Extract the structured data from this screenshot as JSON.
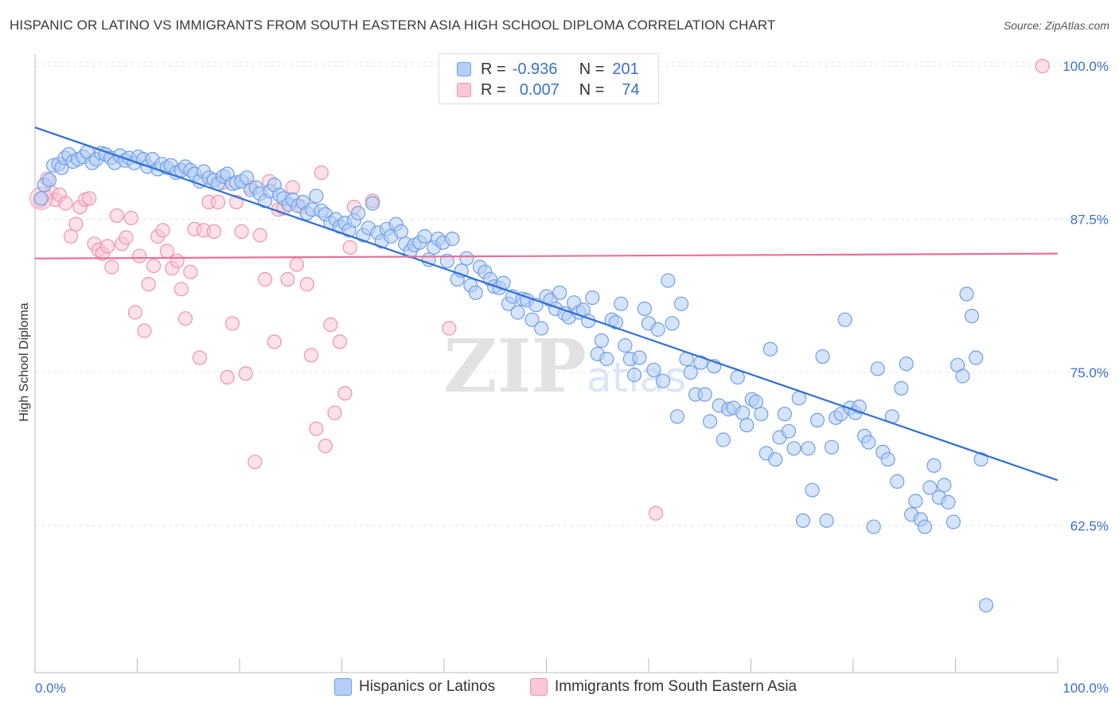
{
  "title": "HISPANIC OR LATINO VS IMMIGRANTS FROM SOUTH EASTERN ASIA HIGH SCHOOL DIPLOMA CORRELATION CHART",
  "source": "Source: ZipAtlas.com",
  "watermark": "ZIPatlas",
  "stats": {
    "blue": {
      "r_label": "R =",
      "r_value": "-0.936",
      "n_label": "N =",
      "n_value": "201"
    },
    "pink": {
      "r_label": "R =",
      "r_value": "0.007",
      "n_label": "N =",
      "n_value": "74"
    }
  },
  "legend": {
    "blue_label": "Hispanics or Latinos",
    "pink_label": "Immigrants from South Eastern Asia"
  },
  "colors": {
    "blue": "#6f9ee6",
    "blue_fill": "#b5cef5",
    "blue_line": "#2f6fd4",
    "pink": "#ee93ae",
    "pink_fill": "#f8c8d6",
    "pink_line": "#e8709a",
    "tick_label": "#3a6fcf"
  },
  "chart_data": {
    "type": "scatter",
    "title": "HISPANIC OR LATINO VS IMMIGRANTS FROM SOUTH EASTERN ASIA HIGH SCHOOL DIPLOMA CORRELATION CHART",
    "xlabel": "",
    "ylabel": "High School Diploma",
    "xlim": [
      0,
      100
    ],
    "ylim": [
      50.5,
      101.5
    ],
    "x_tick_labels": [
      "0.0%",
      "100.0%"
    ],
    "y_ticks": [
      62.5,
      75.0,
      87.5,
      100.0
    ],
    "y_tick_labels": [
      "62.5%",
      "75.0%",
      "87.5%",
      "100.0%"
    ],
    "grid": true,
    "legend_position": "bottom",
    "series": [
      {
        "name": "Hispanics or Latinos",
        "trend": [
          [
            0,
            95.0
          ],
          [
            100,
            66.2
          ]
        ],
        "points": [
          [
            0.6,
            89.2
          ],
          [
            0.9,
            90.3
          ],
          [
            1.4,
            90.7
          ],
          [
            1.8,
            91.9
          ],
          [
            2.3,
            92.0
          ],
          [
            2.6,
            91.7
          ],
          [
            2.9,
            92.5
          ],
          [
            3.3,
            92.8
          ],
          [
            3.7,
            92.2
          ],
          [
            4.2,
            92.4
          ],
          [
            4.7,
            92.6
          ],
          [
            5.1,
            93.0
          ],
          [
            5.6,
            92.1
          ],
          [
            6.0,
            92.4
          ],
          [
            6.5,
            92.9
          ],
          [
            6.9,
            92.8
          ],
          [
            7.4,
            92.5
          ],
          [
            7.8,
            92.1
          ],
          [
            8.3,
            92.7
          ],
          [
            8.8,
            92.3
          ],
          [
            9.2,
            92.5
          ],
          [
            9.7,
            92.1
          ],
          [
            10.1,
            92.6
          ],
          [
            10.6,
            92.4
          ],
          [
            11.0,
            91.8
          ],
          [
            11.5,
            92.4
          ],
          [
            12.0,
            91.6
          ],
          [
            12.4,
            92.0
          ],
          [
            12.9,
            91.7
          ],
          [
            13.3,
            91.9
          ],
          [
            13.8,
            91.3
          ],
          [
            14.3,
            91.5
          ],
          [
            14.7,
            91.8
          ],
          [
            15.2,
            91.5
          ],
          [
            15.6,
            91.2
          ],
          [
            16.1,
            90.6
          ],
          [
            16.5,
            91.4
          ],
          [
            17.0,
            90.9
          ],
          [
            17.5,
            90.7
          ],
          [
            17.9,
            90.4
          ],
          [
            18.4,
            91.0
          ],
          [
            18.8,
            91.2
          ],
          [
            19.3,
            90.4
          ],
          [
            19.7,
            90.5
          ],
          [
            20.2,
            90.6
          ],
          [
            20.7,
            90.9
          ],
          [
            21.1,
            89.9
          ],
          [
            21.6,
            90.1
          ],
          [
            22.0,
            89.6
          ],
          [
            22.5,
            89.0
          ],
          [
            23.0,
            89.8
          ],
          [
            23.4,
            90.3
          ],
          [
            23.9,
            89.5
          ],
          [
            24.3,
            89.2
          ],
          [
            24.8,
            88.7
          ],
          [
            25.2,
            89.1
          ],
          [
            25.7,
            88.6
          ],
          [
            26.2,
            88.9
          ],
          [
            26.6,
            88.0
          ],
          [
            27.1,
            88.3
          ],
          [
            27.5,
            89.4
          ],
          [
            28.0,
            88.2
          ],
          [
            28.4,
            87.9
          ],
          [
            28.9,
            87.2
          ],
          [
            29.4,
            87.5
          ],
          [
            29.8,
            86.9
          ],
          [
            30.3,
            87.2
          ],
          [
            30.7,
            86.6
          ],
          [
            31.2,
            87.4
          ],
          [
            31.6,
            88.0
          ],
          [
            32.1,
            86.2
          ],
          [
            32.6,
            86.8
          ],
          [
            33.0,
            88.8
          ],
          [
            33.5,
            86.4
          ],
          [
            33.9,
            85.7
          ],
          [
            34.4,
            86.7
          ],
          [
            34.8,
            86.1
          ],
          [
            35.3,
            87.1
          ],
          [
            35.8,
            86.5
          ],
          [
            36.2,
            85.5
          ],
          [
            36.7,
            84.9
          ],
          [
            37.1,
            85.4
          ],
          [
            37.6,
            85.6
          ],
          [
            38.1,
            86.1
          ],
          [
            38.5,
            84.2
          ],
          [
            39.0,
            85.2
          ],
          [
            39.4,
            85.9
          ],
          [
            39.9,
            85.6
          ],
          [
            40.3,
            84.1
          ],
          [
            40.8,
            85.9
          ],
          [
            41.3,
            82.6
          ],
          [
            41.7,
            83.3
          ],
          [
            42.2,
            84.3
          ],
          [
            42.6,
            82.1
          ],
          [
            43.1,
            81.5
          ],
          [
            43.5,
            83.6
          ],
          [
            44.0,
            83.2
          ],
          [
            44.5,
            82.6
          ],
          [
            44.9,
            82.0
          ],
          [
            45.4,
            81.9
          ],
          [
            45.8,
            82.3
          ],
          [
            46.3,
            80.6
          ],
          [
            46.7,
            81.2
          ],
          [
            47.2,
            79.9
          ],
          [
            47.7,
            81.0
          ],
          [
            48.1,
            80.9
          ],
          [
            48.6,
            79.3
          ],
          [
            49.0,
            80.5
          ],
          [
            49.5,
            78.6
          ],
          [
            50.0,
            81.2
          ],
          [
            50.4,
            80.9
          ],
          [
            50.9,
            80.2
          ],
          [
            51.3,
            81.5
          ],
          [
            51.8,
            79.8
          ],
          [
            52.2,
            79.5
          ],
          [
            52.7,
            80.7
          ],
          [
            53.2,
            79.9
          ],
          [
            53.6,
            80.1
          ],
          [
            54.1,
            79.2
          ],
          [
            54.5,
            81.1
          ],
          [
            55.0,
            76.5
          ],
          [
            55.4,
            77.6
          ],
          [
            55.9,
            76.1
          ],
          [
            56.4,
            79.3
          ],
          [
            56.8,
            79.1
          ],
          [
            57.3,
            80.6
          ],
          [
            57.7,
            77.2
          ],
          [
            58.2,
            76.1
          ],
          [
            58.6,
            74.8
          ],
          [
            59.1,
            76.2
          ],
          [
            59.6,
            80.2
          ],
          [
            60.0,
            79.0
          ],
          [
            60.5,
            75.2
          ],
          [
            60.9,
            78.5
          ],
          [
            61.4,
            74.3
          ],
          [
            61.9,
            82.5
          ],
          [
            62.3,
            79.0
          ],
          [
            62.8,
            71.4
          ],
          [
            63.2,
            80.6
          ],
          [
            63.7,
            76.1
          ],
          [
            64.1,
            75.0
          ],
          [
            64.6,
            73.2
          ],
          [
            65.1,
            75.8
          ],
          [
            65.5,
            73.2
          ],
          [
            66.0,
            71.0
          ],
          [
            66.4,
            75.5
          ],
          [
            66.9,
            72.3
          ],
          [
            67.3,
            69.5
          ],
          [
            67.8,
            72.0
          ],
          [
            68.3,
            72.1
          ],
          [
            68.7,
            74.6
          ],
          [
            69.2,
            71.7
          ],
          [
            69.6,
            70.7
          ],
          [
            70.1,
            72.8
          ],
          [
            70.5,
            72.6
          ],
          [
            71.0,
            71.6
          ],
          [
            71.5,
            68.4
          ],
          [
            71.9,
            76.9
          ],
          [
            72.4,
            67.9
          ],
          [
            72.8,
            69.7
          ],
          [
            73.3,
            71.6
          ],
          [
            73.7,
            70.2
          ],
          [
            74.2,
            68.8
          ],
          [
            74.7,
            72.9
          ],
          [
            75.1,
            62.9
          ],
          [
            75.6,
            68.8
          ],
          [
            76.0,
            65.4
          ],
          [
            76.5,
            71.1
          ],
          [
            77.0,
            76.3
          ],
          [
            77.4,
            62.9
          ],
          [
            77.9,
            68.9
          ],
          [
            78.3,
            71.3
          ],
          [
            78.8,
            71.6
          ],
          [
            79.2,
            79.3
          ],
          [
            79.7,
            72.1
          ],
          [
            80.2,
            71.7
          ],
          [
            80.6,
            72.2
          ],
          [
            81.1,
            69.8
          ],
          [
            81.5,
            69.3
          ],
          [
            82.0,
            62.4
          ],
          [
            82.4,
            75.3
          ],
          [
            82.9,
            68.5
          ],
          [
            83.4,
            67.9
          ],
          [
            83.8,
            71.4
          ],
          [
            84.3,
            66.1
          ],
          [
            84.7,
            73.7
          ],
          [
            85.2,
            75.7
          ],
          [
            85.7,
            63.4
          ],
          [
            86.1,
            64.5
          ],
          [
            86.6,
            63.0
          ],
          [
            87.0,
            62.4
          ],
          [
            87.5,
            65.6
          ],
          [
            87.9,
            67.4
          ],
          [
            88.4,
            64.8
          ],
          [
            88.9,
            65.8
          ],
          [
            89.3,
            64.4
          ],
          [
            89.8,
            62.8
          ],
          [
            90.2,
            75.6
          ],
          [
            90.7,
            74.7
          ],
          [
            91.1,
            81.4
          ],
          [
            91.6,
            79.6
          ],
          [
            92.0,
            76.2
          ],
          [
            92.5,
            67.9
          ],
          [
            93.0,
            56.0
          ]
        ]
      },
      {
        "name": "Immigrants from South Eastern Asia",
        "trend": [
          [
            0,
            84.3
          ],
          [
            100,
            84.7
          ]
        ],
        "points": [
          [
            0.5,
            89.0
          ],
          [
            1.2,
            90.8
          ],
          [
            1.6,
            89.7
          ],
          [
            2.0,
            89.1
          ],
          [
            2.4,
            89.5
          ],
          [
            3.0,
            88.8
          ],
          [
            3.5,
            86.1
          ],
          [
            4.0,
            87.1
          ],
          [
            4.4,
            88.5
          ],
          [
            4.9,
            89.1
          ],
          [
            5.3,
            89.2
          ],
          [
            5.8,
            85.5
          ],
          [
            6.2,
            85.0
          ],
          [
            6.6,
            84.7
          ],
          [
            7.1,
            85.3
          ],
          [
            7.5,
            83.6
          ],
          [
            8.0,
            87.8
          ],
          [
            8.5,
            85.5
          ],
          [
            8.9,
            86.0
          ],
          [
            9.4,
            87.6
          ],
          [
            9.8,
            79.9
          ],
          [
            10.2,
            84.5
          ],
          [
            10.7,
            78.4
          ],
          [
            11.1,
            82.2
          ],
          [
            11.6,
            83.7
          ],
          [
            12.0,
            86.1
          ],
          [
            12.5,
            86.6
          ],
          [
            12.9,
            84.9
          ],
          [
            13.4,
            83.5
          ],
          [
            13.9,
            84.1
          ],
          [
            14.3,
            81.8
          ],
          [
            14.7,
            79.4
          ],
          [
            15.2,
            83.2
          ],
          [
            15.6,
            86.7
          ],
          [
            16.1,
            76.2
          ],
          [
            16.5,
            86.6
          ],
          [
            17.0,
            88.9
          ],
          [
            17.5,
            86.5
          ],
          [
            17.9,
            88.9
          ],
          [
            18.4,
            90.5
          ],
          [
            18.8,
            74.6
          ],
          [
            19.3,
            79.0
          ],
          [
            19.7,
            88.9
          ],
          [
            20.2,
            86.5
          ],
          [
            20.6,
            74.9
          ],
          [
            21.1,
            90.1
          ],
          [
            21.5,
            67.7
          ],
          [
            22.0,
            86.2
          ],
          [
            22.5,
            82.6
          ],
          [
            22.9,
            90.6
          ],
          [
            23.4,
            77.5
          ],
          [
            23.8,
            88.3
          ],
          [
            24.3,
            88.4
          ],
          [
            24.7,
            82.6
          ],
          [
            25.2,
            90.1
          ],
          [
            25.6,
            83.8
          ],
          [
            26.1,
            88.5
          ],
          [
            26.6,
            82.2
          ],
          [
            27.0,
            76.4
          ],
          [
            27.5,
            70.4
          ],
          [
            28.0,
            91.3
          ],
          [
            28.4,
            69.0
          ],
          [
            28.9,
            78.9
          ],
          [
            29.3,
            71.7
          ],
          [
            29.8,
            77.5
          ],
          [
            30.3,
            73.3
          ],
          [
            30.8,
            85.2
          ],
          [
            31.2,
            88.5
          ],
          [
            33.0,
            89.0
          ],
          [
            40.5,
            78.6
          ],
          [
            46.0,
            100.0
          ],
          [
            50.0,
            100.0
          ],
          [
            60.7,
            63.5
          ],
          [
            98.5,
            100.0
          ]
        ]
      }
    ]
  }
}
